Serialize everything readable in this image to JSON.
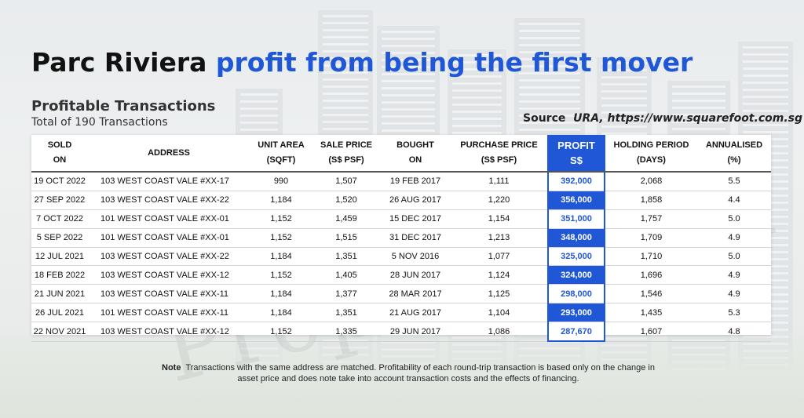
{
  "title": {
    "part1": "Parc Riviera",
    "part2": "profit from being the first mover"
  },
  "subtitle": "Profitable Transactions",
  "subcount": "Total of 190 Transactions",
  "source": {
    "label": "Source",
    "text": "URA, https://www.squarefoot.com.sg"
  },
  "colors": {
    "accent": "#1f57d6"
  },
  "table": {
    "headers": [
      [
        "SOLD",
        "ON"
      ],
      [
        "ADDRESS"
      ],
      [
        "UNIT AREA",
        "(SQFT)"
      ],
      [
        "SALE PRICE",
        "(S$ PSF)"
      ],
      [
        "BOUGHT",
        "ON"
      ],
      [
        "PURCHASE PRICE",
        "(S$ PSF)"
      ],
      [
        "PROFIT",
        "S$"
      ],
      [
        "HOLDING PERIOD",
        "(DAYS)"
      ],
      [
        "ANNUALISED",
        "(%)"
      ]
    ],
    "rows": [
      [
        "19 OCT 2022",
        "103 WEST COAST VALE #XX-17",
        "990",
        "1,507",
        "19 FEB 2017",
        "1,111",
        "392,000",
        "2,068",
        "5.5"
      ],
      [
        "27 SEP 2022",
        "103 WEST COAST VALE #XX-22",
        "1,184",
        "1,520",
        "26 AUG 2017",
        "1,220",
        "356,000",
        "1,858",
        "4.4"
      ],
      [
        "7 OCT 2022",
        "101 WEST COAST VALE #XX-01",
        "1,152",
        "1,459",
        "15 DEC 2017",
        "1,154",
        "351,000",
        "1,757",
        "5.0"
      ],
      [
        "5 SEP 2022",
        "101 WEST COAST VALE #XX-01",
        "1,152",
        "1,515",
        "31 DEC 2017",
        "1,213",
        "348,000",
        "1,709",
        "4.9"
      ],
      [
        "12 JUL 2021",
        "103 WEST COAST VALE #XX-22",
        "1,184",
        "1,351",
        "5 NOV 2016",
        "1,077",
        "325,000",
        "1,710",
        "5.0"
      ],
      [
        "18 FEB 2022",
        "103 WEST COAST VALE #XX-12",
        "1,152",
        "1,405",
        "28 JUN 2017",
        "1,124",
        "324,000",
        "1,696",
        "4.9"
      ],
      [
        "21 JUN 2021",
        "103 WEST COAST VALE #XX-11",
        "1,184",
        "1,377",
        "28 MAR 2017",
        "1,125",
        "298,000",
        "1,546",
        "4.9"
      ],
      [
        "26 JUL 2021",
        "101 WEST COAST VALE #XX-11",
        "1,184",
        "1,351",
        "21 AUG 2017",
        "1,104",
        "293,000",
        "1,435",
        "5.3"
      ],
      [
        "22 NOV 2021",
        "103 WEST COAST VALE #XX-12",
        "1,152",
        "1,335",
        "29 JUN 2017",
        "1,086",
        "287,670",
        "1,607",
        "4.8"
      ]
    ]
  },
  "note": {
    "label": "Note",
    "text": "Transactions with the same address are matched. Profitability of each round-trip transaction is based only on the change in asset price and does note take into account transaction costs and the effects of financing."
  },
  "watermark": "PropNex.com"
}
